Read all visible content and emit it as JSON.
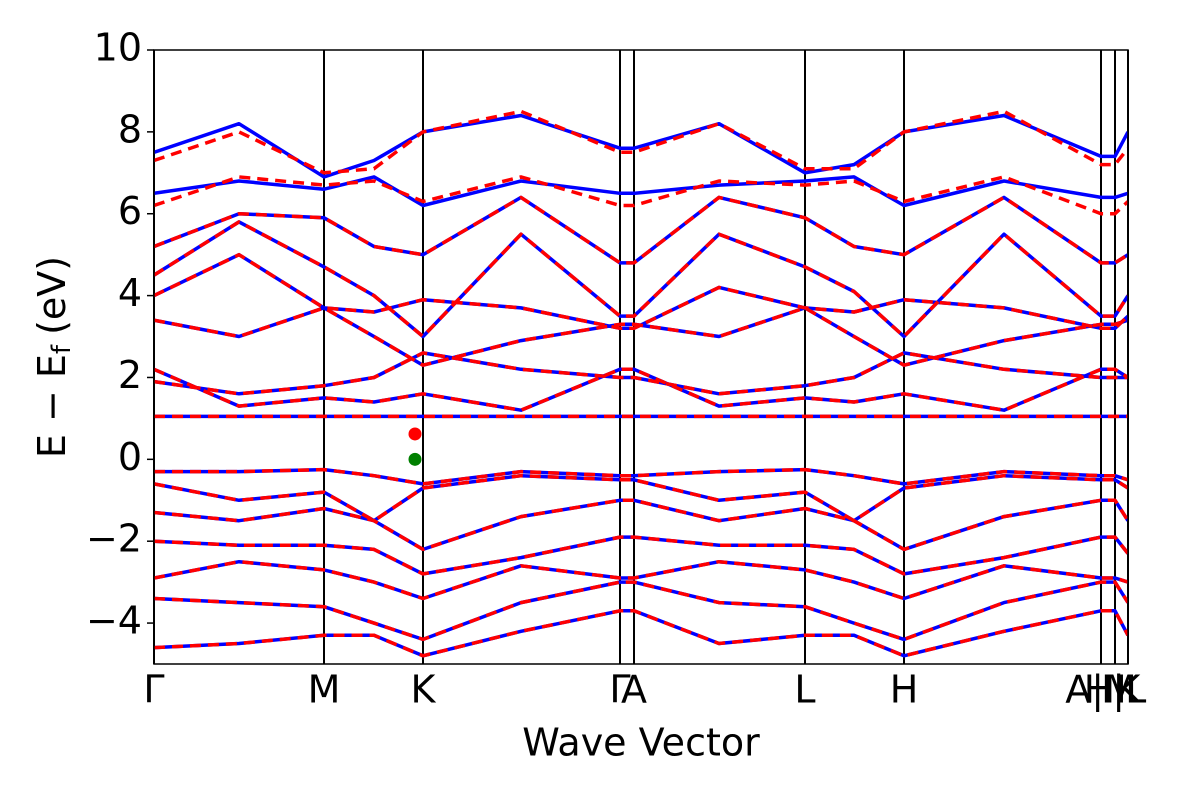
{
  "chart_data": {
    "type": "line",
    "xlabel": "Wave Vector",
    "ylabel": {
      "main": "E − E",
      "sub": "f",
      "unit": "(eV)"
    },
    "xlim": [
      0,
      974
    ],
    "ylim": [
      -5,
      10
    ],
    "xticks": [
      {
        "value": 0,
        "label": "Γ"
      },
      {
        "value": 170,
        "label": "M"
      },
      {
        "value": 269,
        "label": "K"
      },
      {
        "value": 466,
        "label": "Γ"
      },
      {
        "value": 480,
        "label": "A"
      },
      {
        "value": 651,
        "label": "L"
      },
      {
        "value": 750,
        "label": "H"
      },
      {
        "value": 947,
        "label": "A|M"
      },
      {
        "value": 961,
        "label": "H|L"
      },
      {
        "value": 974,
        "label": "K"
      }
    ],
    "yticks": [
      {
        "value": -4,
        "label": "−4"
      },
      {
        "value": -2,
        "label": "−2"
      },
      0,
      2,
      4,
      6,
      8,
      10
    ],
    "grid": "x",
    "x": [
      0,
      85,
      170,
      220,
      269,
      367,
      466,
      480,
      565,
      651,
      700,
      750,
      850,
      947,
      961,
      974
    ],
    "series": [
      {
        "color": "#0000ff",
        "dash": false,
        "values": [
          [
            1.05,
            1.05,
            1.05,
            1.05,
            1.05,
            1.05,
            1.05,
            1.05,
            1.05,
            1.05,
            1.05,
            1.05,
            1.05,
            1.05,
            1.05,
            1.05
          ],
          [
            1.9,
            1.6,
            1.8,
            2.0,
            2.6,
            2.2,
            2.0,
            2.0,
            1.6,
            1.8,
            2.0,
            2.6,
            2.2,
            2.0,
            2.0,
            2.0
          ],
          [
            2.2,
            1.3,
            1.5,
            1.4,
            1.6,
            1.2,
            2.2,
            2.2,
            1.3,
            1.5,
            1.4,
            1.6,
            1.2,
            2.2,
            2.2,
            2.0
          ],
          [
            3.4,
            3.0,
            3.7,
            3.0,
            2.3,
            2.9,
            3.3,
            3.3,
            3.0,
            3.7,
            3.0,
            2.3,
            2.9,
            3.3,
            3.3,
            3.4
          ],
          [
            4.0,
            5.0,
            3.7,
            3.6,
            3.9,
            3.7,
            3.2,
            3.2,
            4.2,
            3.7,
            3.6,
            3.9,
            3.7,
            3.2,
            3.2,
            3.5
          ],
          [
            4.5,
            5.8,
            4.7,
            4.0,
            3.0,
            5.5,
            3.5,
            3.5,
            5.5,
            4.7,
            4.1,
            3.0,
            5.5,
            3.5,
            3.5,
            4.0
          ],
          [
            5.2,
            6.0,
            5.9,
            5.2,
            5.0,
            6.4,
            4.8,
            4.8,
            6.4,
            5.9,
            5.2,
            5.0,
            6.4,
            4.8,
            4.8,
            5.0
          ],
          [
            6.5,
            6.8,
            6.6,
            6.9,
            6.2,
            6.8,
            6.5,
            6.5,
            6.7,
            6.8,
            6.9,
            6.2,
            6.8,
            6.4,
            6.4,
            6.5
          ],
          [
            7.5,
            8.2,
            6.9,
            7.3,
            8.0,
            8.4,
            7.6,
            7.6,
            8.2,
            7.0,
            7.2,
            8.0,
            8.4,
            7.4,
            7.4,
            8.0
          ],
          [
            -0.3,
            -0.3,
            -0.25,
            -0.4,
            -0.6,
            -0.3,
            -0.4,
            -0.4,
            -0.3,
            -0.25,
            -0.4,
            -0.6,
            -0.3,
            -0.4,
            -0.4,
            -0.5
          ],
          [
            -0.6,
            -1.0,
            -0.8,
            -1.5,
            -0.7,
            -0.4,
            -0.5,
            -0.5,
            -1.0,
            -0.8,
            -1.5,
            -0.7,
            -0.4,
            -0.5,
            -0.5,
            -0.7
          ],
          [
            -1.3,
            -1.5,
            -1.2,
            -1.5,
            -2.2,
            -1.4,
            -1.0,
            -1.0,
            -1.5,
            -1.2,
            -1.5,
            -2.2,
            -1.4,
            -1.0,
            -1.0,
            -1.5
          ],
          [
            -2.0,
            -2.1,
            -2.1,
            -2.2,
            -2.8,
            -2.4,
            -1.9,
            -1.9,
            -2.1,
            -2.1,
            -2.2,
            -2.8,
            -2.4,
            -1.9,
            -1.9,
            -2.3
          ],
          [
            -2.9,
            -2.5,
            -2.7,
            -3.0,
            -3.4,
            -2.6,
            -2.9,
            -2.9,
            -2.5,
            -2.7,
            -3.0,
            -3.4,
            -2.6,
            -2.9,
            -2.9,
            -3.0
          ],
          [
            -3.4,
            -3.5,
            -3.6,
            -4.0,
            -4.4,
            -3.5,
            -3.0,
            -3.0,
            -3.5,
            -3.6,
            -4.0,
            -4.4,
            -3.5,
            -3.0,
            -3.0,
            -3.5
          ],
          [
            -4.6,
            -4.5,
            -4.3,
            -4.3,
            -4.8,
            -4.2,
            -3.7,
            -3.7,
            -4.5,
            -4.3,
            -4.3,
            -4.8,
            -4.2,
            -3.7,
            -3.7,
            -4.3
          ]
        ]
      },
      {
        "color": "#ff0000",
        "dash": true,
        "values": [
          [
            1.05,
            1.05,
            1.05,
            1.05,
            1.05,
            1.05,
            1.05,
            1.05,
            1.05,
            1.05,
            1.05,
            1.05,
            1.05,
            1.05,
            1.05,
            1.05
          ],
          [
            1.9,
            1.6,
            1.8,
            2.0,
            2.6,
            2.2,
            2.0,
            2.0,
            1.6,
            1.8,
            2.0,
            2.6,
            2.2,
            2.0,
            2.0,
            2.0
          ],
          [
            2.2,
            1.3,
            1.5,
            1.4,
            1.6,
            1.2,
            2.2,
            2.2,
            1.3,
            1.5,
            1.4,
            1.6,
            1.2,
            2.2,
            2.2,
            2.0
          ],
          [
            3.4,
            3.0,
            3.7,
            3.0,
            2.3,
            2.9,
            3.3,
            3.3,
            3.0,
            3.7,
            3.0,
            2.3,
            2.9,
            3.3,
            3.3,
            3.4
          ],
          [
            4.0,
            5.0,
            3.7,
            3.6,
            3.9,
            3.7,
            3.2,
            3.2,
            4.2,
            3.7,
            3.6,
            3.9,
            3.7,
            3.2,
            3.2,
            3.5
          ],
          [
            4.5,
            5.8,
            4.7,
            4.0,
            3.0,
            5.5,
            3.5,
            3.5,
            5.5,
            4.7,
            4.1,
            3.0,
            5.5,
            3.5,
            3.5,
            4.0
          ],
          [
            5.2,
            6.0,
            5.9,
            5.2,
            5.0,
            6.4,
            4.8,
            4.8,
            6.4,
            5.9,
            5.2,
            5.0,
            6.4,
            4.8,
            4.8,
            5.0
          ],
          [
            6.2,
            6.9,
            6.7,
            6.8,
            6.3,
            6.9,
            6.2,
            6.2,
            6.8,
            6.7,
            6.8,
            6.3,
            6.9,
            6.0,
            6.0,
            6.3
          ],
          [
            7.3,
            8.0,
            7.0,
            7.1,
            8.0,
            8.5,
            7.5,
            7.5,
            8.2,
            7.1,
            7.1,
            8.0,
            8.5,
            7.2,
            7.2,
            7.6
          ],
          [
            -0.3,
            -0.3,
            -0.25,
            -0.4,
            -0.6,
            -0.3,
            -0.4,
            -0.4,
            -0.3,
            -0.25,
            -0.4,
            -0.6,
            -0.3,
            -0.4,
            -0.4,
            -0.5
          ],
          [
            -0.6,
            -1.0,
            -0.8,
            -1.5,
            -0.7,
            -0.4,
            -0.5,
            -0.5,
            -1.0,
            -0.8,
            -1.5,
            -0.7,
            -0.4,
            -0.5,
            -0.5,
            -0.7
          ],
          [
            -1.3,
            -1.5,
            -1.2,
            -1.5,
            -2.2,
            -1.4,
            -1.0,
            -1.0,
            -1.5,
            -1.2,
            -1.5,
            -2.2,
            -1.4,
            -1.0,
            -1.0,
            -1.5
          ],
          [
            -2.0,
            -2.1,
            -2.1,
            -2.2,
            -2.8,
            -2.4,
            -1.9,
            -1.9,
            -2.1,
            -2.1,
            -2.2,
            -2.8,
            -2.4,
            -1.9,
            -1.9,
            -2.3
          ],
          [
            -2.9,
            -2.5,
            -2.7,
            -3.0,
            -3.4,
            -2.6,
            -2.9,
            -2.9,
            -2.5,
            -2.7,
            -3.0,
            -3.4,
            -2.6,
            -2.9,
            -2.9,
            -3.0
          ],
          [
            -3.4,
            -3.5,
            -3.6,
            -4.0,
            -4.4,
            -3.5,
            -3.0,
            -3.0,
            -3.5,
            -3.6,
            -4.0,
            -4.4,
            -3.5,
            -3.0,
            -3.0,
            -3.5
          ],
          [
            -4.6,
            -4.5,
            -4.3,
            -4.3,
            -4.8,
            -4.2,
            -3.7,
            -3.7,
            -4.5,
            -4.3,
            -4.3,
            -4.8,
            -4.2,
            -3.7,
            -3.7,
            -4.3
          ]
        ]
      }
    ],
    "points": [
      {
        "x": 261,
        "y": 0.62,
        "color": "#ff0000"
      },
      {
        "x": 261,
        "y": 0,
        "color": "#008000"
      }
    ]
  }
}
